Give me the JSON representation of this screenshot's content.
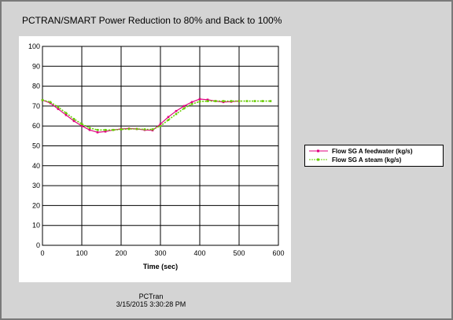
{
  "chart_data": {
    "type": "line",
    "title": "PCTRAN/SMART Power Reduction to 80% and Back to 100%",
    "xlabel": "Time (sec)",
    "ylabel": "",
    "xlim": [
      0,
      600
    ],
    "ylim": [
      0,
      100
    ],
    "xticks": [
      0,
      100,
      200,
      300,
      400,
      500,
      600
    ],
    "yticks": [
      0,
      10,
      20,
      30,
      40,
      50,
      60,
      70,
      80,
      90,
      100
    ],
    "grid": true,
    "legend_position": "right",
    "series": [
      {
        "name": "Flow SG A feedwater (kg/s)",
        "color": "#e0007f",
        "x": [
          0,
          20,
          40,
          60,
          80,
          100,
          120,
          140,
          160,
          180,
          200,
          220,
          240,
          260,
          280,
          300,
          320,
          340,
          360,
          380,
          400,
          420,
          440,
          460,
          480,
          500
        ],
        "values": [
          73,
          71.5,
          68.5,
          65.5,
          62.5,
          60,
          58,
          56.8,
          57.2,
          58,
          58.5,
          58.7,
          58.5,
          58,
          57.8,
          61,
          64.5,
          67.5,
          70,
          72,
          73.5,
          73.2,
          72.5,
          72,
          72.2,
          72.5
        ]
      },
      {
        "name": "Flow SG A steam (kg/s)",
        "color": "#66cc00",
        "x": [
          0,
          20,
          40,
          60,
          80,
          100,
          120,
          140,
          160,
          180,
          200,
          220,
          240,
          260,
          280,
          300,
          320,
          340,
          360,
          380,
          400,
          420,
          440,
          460,
          480,
          500,
          520,
          540,
          560,
          580
        ],
        "values": [
          73,
          72,
          69.5,
          66.5,
          63.5,
          61,
          59,
          58,
          58,
          58,
          58.3,
          58.5,
          58.5,
          58.3,
          58.3,
          60,
          63,
          66,
          68.8,
          71,
          72.3,
          72.5,
          72.5,
          72.5,
          72.5,
          72.5,
          72.5,
          72.5,
          72.5,
          72.5
        ]
      }
    ]
  },
  "footer": {
    "program": "PCTran",
    "timestamp": "3/15/2015 3:30:28 PM"
  }
}
